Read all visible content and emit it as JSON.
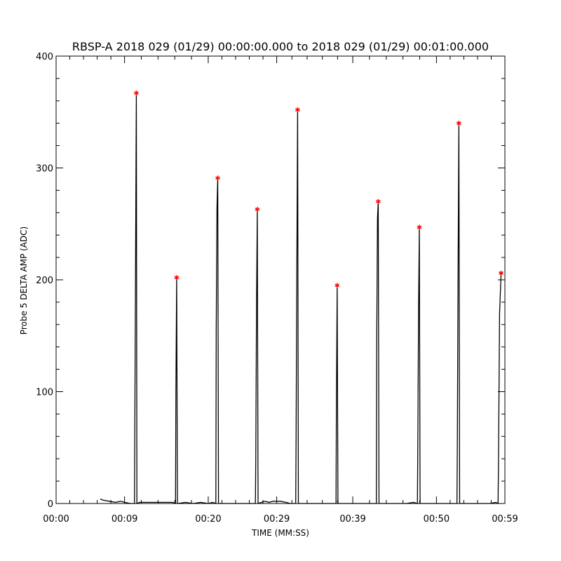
{
  "chart_data": {
    "type": "line",
    "title": "RBSP-A 2018 029 (01/29) 00:00:00.000 to 2018 029 (01/29) 00:01:00.000",
    "xlabel": "TIME (MM:SS)",
    "ylabel": "Probe 5 DELTA AMP (ADC)",
    "xlim": [
      0,
      59
    ],
    "ylim": [
      0,
      400
    ],
    "x_ticks": [
      {
        "value": 0,
        "label": "00:00"
      },
      {
        "value": 9,
        "label": "00:09"
      },
      {
        "value": 20,
        "label": "00:20"
      },
      {
        "value": 29,
        "label": "00:29"
      },
      {
        "value": 39,
        "label": "00:39"
      },
      {
        "value": 50,
        "label": "00:50"
      },
      {
        "value": 59,
        "label": "00:59"
      }
    ],
    "y_ticks": [
      0,
      100,
      200,
      300,
      400
    ],
    "grid": false,
    "colors": {
      "line": "#000000",
      "marker": "#ff0000"
    },
    "series": [
      {
        "type": "line",
        "values": [
          {
            "x": 5.8,
            "y": 4
          },
          {
            "x": 6.2,
            "y": 3
          },
          {
            "x": 7.0,
            "y": 2
          },
          {
            "x": 7.8,
            "y": 1
          },
          {
            "x": 8.5,
            "y": 2
          },
          {
            "x": 9.0,
            "y": 1
          },
          {
            "x": 9.8,
            "y": 0
          },
          {
            "x": 10.3,
            "y": 0
          },
          {
            "x": 10.35,
            "y": 70
          },
          {
            "x": 10.45,
            "y": 220
          },
          {
            "x": 10.55,
            "y": 367
          },
          {
            "x": 10.62,
            "y": 0
          },
          {
            "x": 11.0,
            "y": 1
          },
          {
            "x": 12.0,
            "y": 1
          },
          {
            "x": 13.0,
            "y": 1
          },
          {
            "x": 14.0,
            "y": 1
          },
          {
            "x": 15.3,
            "y": 1
          },
          {
            "x": 15.7,
            "y": 0
          },
          {
            "x": 15.75,
            "y": 100
          },
          {
            "x": 15.85,
            "y": 202
          },
          {
            "x": 15.95,
            "y": 0
          },
          {
            "x": 17.0,
            "y": 1
          },
          {
            "x": 18.0,
            "y": 0
          },
          {
            "x": 19.0,
            "y": 1
          },
          {
            "x": 20.0,
            "y": 0
          },
          {
            "x": 20.6,
            "y": 1
          },
          {
            "x": 21.0,
            "y": 0
          },
          {
            "x": 21.05,
            "y": 155
          },
          {
            "x": 21.15,
            "y": 265
          },
          {
            "x": 21.25,
            "y": 291
          },
          {
            "x": 21.35,
            "y": 0
          },
          {
            "x": 22.5,
            "y": 0
          },
          {
            "x": 24.0,
            "y": 0
          },
          {
            "x": 25.5,
            "y": 0
          },
          {
            "x": 26.2,
            "y": 0
          },
          {
            "x": 26.25,
            "y": 40
          },
          {
            "x": 26.35,
            "y": 180
          },
          {
            "x": 26.45,
            "y": 263
          },
          {
            "x": 26.55,
            "y": 0
          },
          {
            "x": 27.0,
            "y": 1
          },
          {
            "x": 27.5,
            "y": 2
          },
          {
            "x": 28.0,
            "y": 1
          },
          {
            "x": 28.5,
            "y": 2
          },
          {
            "x": 29.5,
            "y": 2
          },
          {
            "x": 30.2,
            "y": 1
          },
          {
            "x": 30.8,
            "y": 0
          },
          {
            "x": 31.2,
            "y": 0
          },
          {
            "x": 31.5,
            "y": 0
          },
          {
            "x": 31.55,
            "y": 60
          },
          {
            "x": 31.65,
            "y": 215
          },
          {
            "x": 31.75,
            "y": 352
          },
          {
            "x": 31.85,
            "y": 0
          },
          {
            "x": 33.0,
            "y": 0
          },
          {
            "x": 35.0,
            "y": 0
          },
          {
            "x": 36.5,
            "y": 0
          },
          {
            "x": 36.8,
            "y": 0
          },
          {
            "x": 36.85,
            "y": 90
          },
          {
            "x": 36.95,
            "y": 195
          },
          {
            "x": 37.05,
            "y": 0
          },
          {
            "x": 39.0,
            "y": 0
          },
          {
            "x": 41.0,
            "y": 0
          },
          {
            "x": 42.1,
            "y": 0
          },
          {
            "x": 42.15,
            "y": 145
          },
          {
            "x": 42.25,
            "y": 255
          },
          {
            "x": 42.35,
            "y": 270
          },
          {
            "x": 42.45,
            "y": 0
          },
          {
            "x": 44.0,
            "y": 0
          },
          {
            "x": 46.0,
            "y": 0
          },
          {
            "x": 47.0,
            "y": 1
          },
          {
            "x": 47.5,
            "y": 0
          },
          {
            "x": 47.55,
            "y": 50
          },
          {
            "x": 47.65,
            "y": 175
          },
          {
            "x": 47.75,
            "y": 247
          },
          {
            "x": 47.85,
            "y": 0
          },
          {
            "x": 49.0,
            "y": 0
          },
          {
            "x": 51.0,
            "y": 0
          },
          {
            "x": 52.0,
            "y": 0
          },
          {
            "x": 52.7,
            "y": 0
          },
          {
            "x": 52.75,
            "y": 55
          },
          {
            "x": 52.85,
            "y": 215
          },
          {
            "x": 52.95,
            "y": 340
          },
          {
            "x": 53.05,
            "y": 0
          },
          {
            "x": 55.0,
            "y": 0
          },
          {
            "x": 57.0,
            "y": 0
          },
          {
            "x": 57.8,
            "y": 1
          },
          {
            "x": 58.1,
            "y": 0
          },
          {
            "x": 58.15,
            "y": 30
          },
          {
            "x": 58.3,
            "y": 170
          },
          {
            "x": 58.5,
            "y": 206
          }
        ]
      },
      {
        "type": "scatter",
        "marker": "asterisk",
        "values": [
          {
            "x": 10.55,
            "y": 367
          },
          {
            "x": 15.85,
            "y": 202
          },
          {
            "x": 21.25,
            "y": 291
          },
          {
            "x": 26.45,
            "y": 263
          },
          {
            "x": 31.75,
            "y": 352
          },
          {
            "x": 36.95,
            "y": 195
          },
          {
            "x": 42.35,
            "y": 270
          },
          {
            "x": 47.75,
            "y": 247
          },
          {
            "x": 52.95,
            "y": 340
          },
          {
            "x": 58.5,
            "y": 206
          }
        ]
      }
    ]
  }
}
